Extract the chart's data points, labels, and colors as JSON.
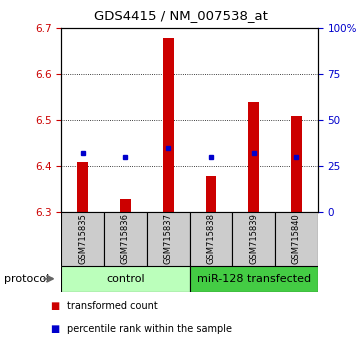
{
  "title": "GDS4415 / NM_007538_at",
  "samples": [
    "GSM715835",
    "GSM715836",
    "GSM715837",
    "GSM715838",
    "GSM715839",
    "GSM715840"
  ],
  "red_values": [
    6.41,
    6.33,
    6.68,
    6.38,
    6.54,
    6.51
  ],
  "blue_values": [
    6.43,
    6.42,
    6.44,
    6.42,
    6.43,
    6.42
  ],
  "baseline": 6.3,
  "ylim_left": [
    6.3,
    6.7
  ],
  "ylim_right": [
    0,
    100
  ],
  "yticks_left": [
    6.3,
    6.4,
    6.5,
    6.6,
    6.7
  ],
  "yticks_right": [
    0,
    25,
    50,
    75,
    100
  ],
  "ytick_right_labels": [
    "0",
    "25",
    "50",
    "75",
    "100%"
  ],
  "red_color": "#cc0000",
  "blue_color": "#0000cc",
  "bar_width": 0.25,
  "ctrl_color_light": "#bbffbb",
  "ctrl_color_dark": "#44cc44",
  "tick_label_bg": "#cccccc",
  "legend_items": [
    {
      "color": "#cc0000",
      "label": "transformed count"
    },
    {
      "color": "#0000cc",
      "label": "percentile rank within the sample"
    }
  ]
}
